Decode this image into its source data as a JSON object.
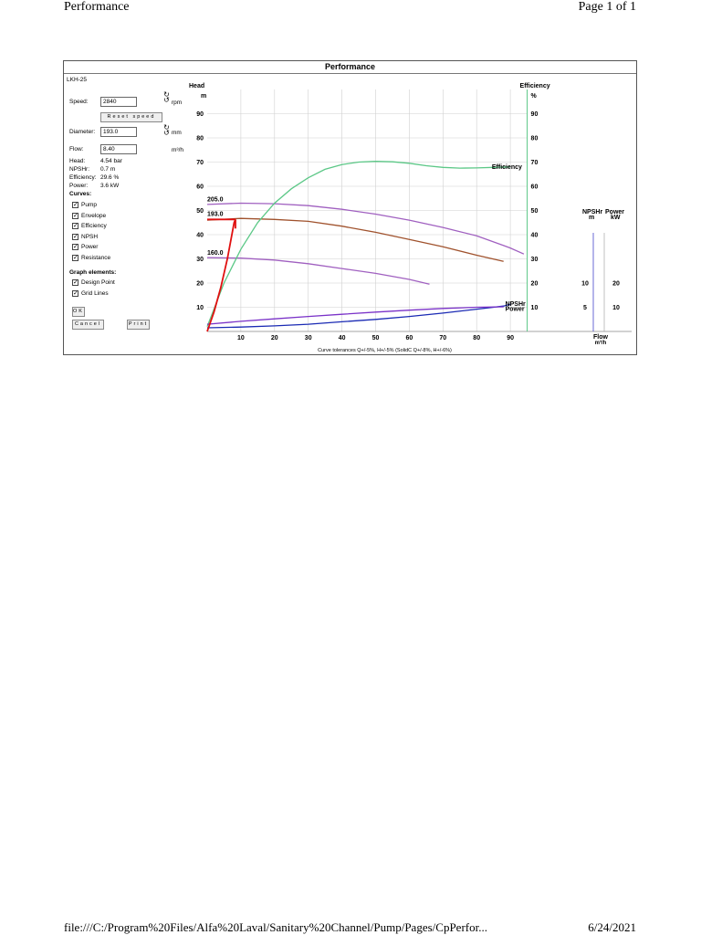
{
  "page": {
    "header_left": "Performance",
    "header_right": "Page 1 of 1",
    "footer_left": "file:///C:/Program%20Files/Alfa%20Laval/Sanitary%20Channel/Pump/Pages/CpPerfor...",
    "footer_right": "6/24/2021"
  },
  "panel": {
    "title": "Performance",
    "model": "LKH-25",
    "speed": {
      "label": "Speed:",
      "value": "2840",
      "unit": "rpm"
    },
    "reset_button": "Reset speed",
    "diameter": {
      "label": "Diameter:",
      "value": "193.0",
      "unit": "mm"
    },
    "flow": {
      "label": "Flow:",
      "value": "8.40",
      "unit": "m³/h"
    },
    "results": [
      {
        "label": "Head:",
        "value": "4.54 bar"
      },
      {
        "label": "NPSHr:",
        "value": "0.7 m"
      },
      {
        "label": "Efficiency:",
        "value": "29.6 %"
      },
      {
        "label": "Power:",
        "value": "3.6 kW"
      }
    ],
    "curves_title": "Curves:",
    "curves": [
      "Pump",
      "Envelope",
      "Efficiency",
      "NPSH",
      "Power",
      "Resistance"
    ],
    "graph_title": "Graph elements:",
    "graph_elements": [
      "Design Point",
      "Grid Lines"
    ],
    "ok_button": "OK",
    "cancel_button": "Cancel",
    "print_button": "Print",
    "colors": {
      "pump": "#a060c0",
      "envelope": "#a0522d",
      "efficiency": "#5cc887",
      "npsh": "#1a2ab4",
      "power": "#7a32c8",
      "resistance": "#e01010",
      "grid": "#d0d0d0"
    }
  },
  "chart_data": {
    "type": "line",
    "title": "Performance",
    "xlabel": "Flow",
    "xunit": "m³/h",
    "ylabel": "Head",
    "yunit": "m",
    "y2label": "Efficiency",
    "y2unit": "%",
    "npsh_label": "NPSHr",
    "npsh_unit": "m",
    "power_label": "Power",
    "power_unit": "kW",
    "xlim": [
      0,
      100
    ],
    "ylim": [
      0,
      100
    ],
    "x_ticks": [
      10,
      20,
      30,
      40,
      50,
      60,
      70,
      80,
      90
    ],
    "y_ticks": [
      10,
      20,
      30,
      40,
      50,
      60,
      70,
      80,
      90
    ],
    "npsh_ticks": [
      {
        "label": "10",
        "value": 20
      },
      {
        "label": "5",
        "value": 10
      }
    ],
    "power_ticks": [
      {
        "label": "20",
        "value": 20
      },
      {
        "label": "10",
        "value": 10
      }
    ],
    "tolerance_note": "Curve tolerances Q+/-5%, H+/-5% (SolidC Q+/-8%, H+/-6%)",
    "grid": true,
    "series": [
      {
        "name": "205.0",
        "color": "#a060c0",
        "points": [
          [
            0,
            52.5
          ],
          [
            10,
            53
          ],
          [
            20,
            52.8
          ],
          [
            30,
            52
          ],
          [
            40,
            50.5
          ],
          [
            50,
            48.5
          ],
          [
            60,
            46
          ],
          [
            70,
            43
          ],
          [
            80,
            39.5
          ],
          [
            88,
            35.5
          ],
          [
            90,
            34.5
          ],
          [
            94,
            32
          ]
        ]
      },
      {
        "name": "193.0",
        "color": "#a0522d",
        "points": [
          [
            0,
            46
          ],
          [
            10,
            46.7
          ],
          [
            20,
            46.3
          ],
          [
            30,
            45.5
          ],
          [
            40,
            43.5
          ],
          [
            50,
            41
          ],
          [
            60,
            38
          ],
          [
            70,
            35
          ],
          [
            80,
            31.5
          ],
          [
            88,
            29
          ]
        ]
      },
      {
        "name": "160.0",
        "color": "#a060c0",
        "points": [
          [
            0,
            30.5
          ],
          [
            10,
            30.3
          ],
          [
            20,
            29.5
          ],
          [
            30,
            28
          ],
          [
            40,
            26
          ],
          [
            50,
            24
          ],
          [
            60,
            21.5
          ],
          [
            66,
            19.5
          ]
        ]
      },
      {
        "name": "Efficiency",
        "color": "#5cc887",
        "points": [
          [
            0,
            2
          ],
          [
            5,
            20
          ],
          [
            10,
            34
          ],
          [
            15,
            45
          ],
          [
            20,
            53
          ],
          [
            25,
            59
          ],
          [
            30,
            63.5
          ],
          [
            35,
            67
          ],
          [
            40,
            69
          ],
          [
            45,
            70
          ],
          [
            50,
            70.3
          ],
          [
            55,
            70.1
          ],
          [
            60,
            69.5
          ],
          [
            65,
            68.5
          ],
          [
            70,
            67.8
          ],
          [
            75,
            67.5
          ],
          [
            80,
            67.6
          ],
          [
            85,
            67.8
          ],
          [
            90,
            68
          ]
        ]
      },
      {
        "name": "NPSHr",
        "color": "#1a2ab4",
        "points": [
          [
            0,
            1.5
          ],
          [
            10,
            1.8
          ],
          [
            20,
            2.3
          ],
          [
            30,
            3
          ],
          [
            40,
            4
          ],
          [
            50,
            5
          ],
          [
            60,
            6.2
          ],
          [
            70,
            7.6
          ],
          [
            80,
            9.2
          ],
          [
            88,
            10.5
          ],
          [
            90,
            11.2
          ]
        ]
      },
      {
        "name": "Power",
        "color": "#7a32c8",
        "points": [
          [
            0,
            3
          ],
          [
            10,
            4.2
          ],
          [
            20,
            5.2
          ],
          [
            30,
            6.2
          ],
          [
            40,
            7.1
          ],
          [
            50,
            8
          ],
          [
            60,
            8.8
          ],
          [
            70,
            9.5
          ],
          [
            80,
            10
          ],
          [
            88,
            10.2
          ]
        ]
      }
    ],
    "design_point": {
      "flow": 8.4,
      "head": 46.3
    },
    "resistance_curve": [
      [
        0,
        0
      ],
      [
        2,
        8
      ],
      [
        4,
        18
      ],
      [
        6,
        30
      ],
      [
        8,
        45
      ],
      [
        8.4,
        46.3
      ]
    ],
    "annotations": [
      "205.0",
      "193.0",
      "160.0",
      "Efficiency",
      "NPSHr",
      "Power"
    ]
  }
}
